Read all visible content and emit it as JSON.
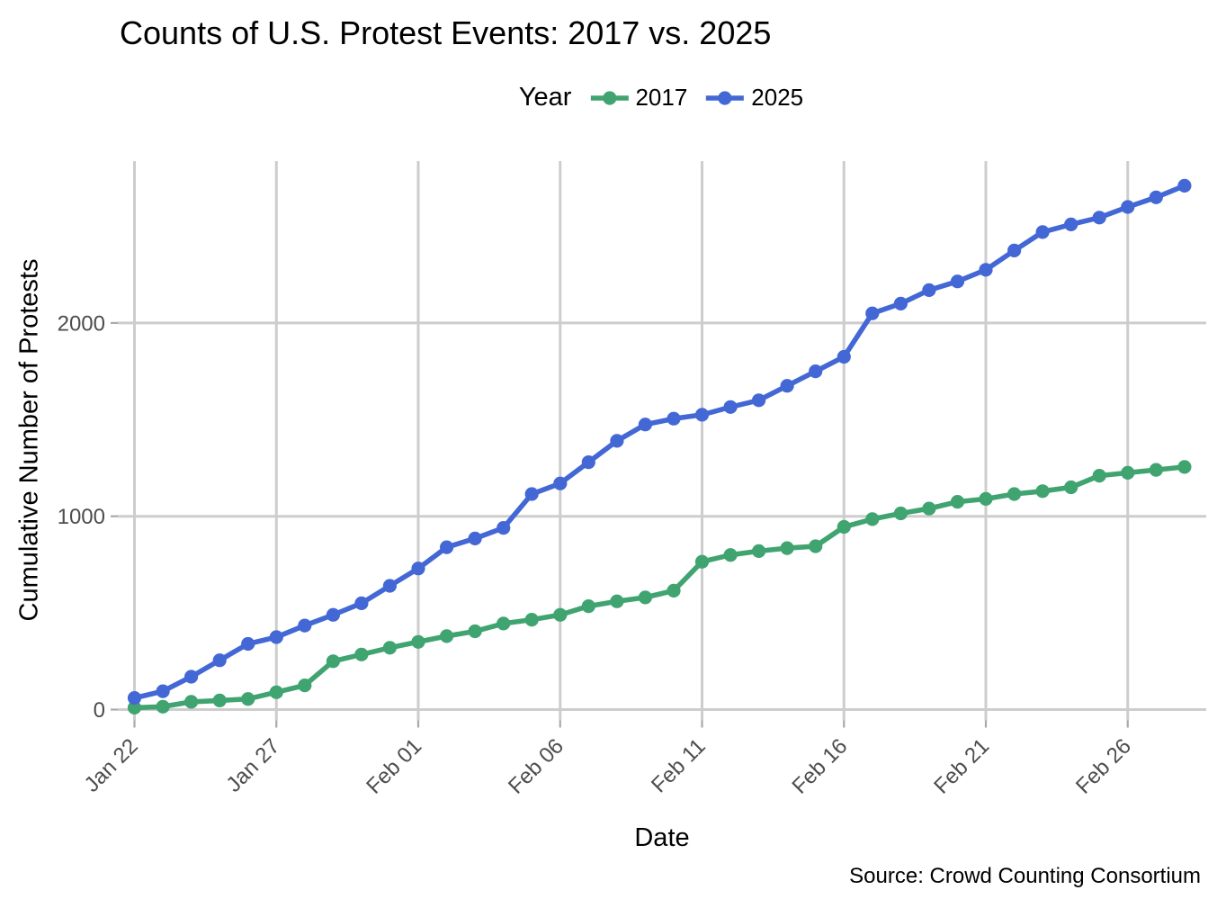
{
  "chart": {
    "title": "Counts of U.S. Protest Events: 2017 vs. 2025",
    "legend_title": "Year",
    "xlabel": "Date",
    "ylabel": "Cumulative Number of Protests",
    "source": "Source: Crowd Counting Consortium",
    "legend_items": [
      {
        "label": "2017",
        "color": "#40a471"
      },
      {
        "label": "2025",
        "color": "#4368d5"
      }
    ]
  },
  "colors": {
    "series_2017": "#40a471",
    "series_2025": "#4368d5",
    "gridline": "#cdcdcd",
    "tick_mark": "#a9a9a9",
    "tick_text": "#4d4d4d",
    "text": "#000000",
    "background": "#ffffff"
  },
  "chart_data": {
    "type": "line",
    "title": "Counts of U.S. Protest Events: 2017 vs. 2025",
    "xlabel": "Date",
    "ylabel": "Cumulative Number of Protests",
    "legend_title": "Year",
    "legend_position": "top",
    "grid": true,
    "x": [
      "Jan 22",
      "Jan 23",
      "Jan 24",
      "Jan 25",
      "Jan 26",
      "Jan 27",
      "Jan 28",
      "Jan 29",
      "Jan 30",
      "Jan 31",
      "Feb 01",
      "Feb 02",
      "Feb 03",
      "Feb 04",
      "Feb 05",
      "Feb 06",
      "Feb 07",
      "Feb 08",
      "Feb 09",
      "Feb 10",
      "Feb 11",
      "Feb 12",
      "Feb 13",
      "Feb 14",
      "Feb 15",
      "Feb 16",
      "Feb 17",
      "Feb 18",
      "Feb 19",
      "Feb 20",
      "Feb 21",
      "Feb 22",
      "Feb 23",
      "Feb 24",
      "Feb 25",
      "Feb 26",
      "Feb 27",
      "Feb 28"
    ],
    "x_tick_labels": [
      "Jan 22",
      "Jan 27",
      "Feb 01",
      "Feb 06",
      "Feb 11",
      "Feb 16",
      "Feb 21",
      "Feb 26"
    ],
    "x_tick_indices": [
      0,
      5,
      10,
      15,
      20,
      25,
      30,
      35
    ],
    "y_ticks": [
      0,
      1000,
      2000
    ],
    "ylim": [
      0,
      2900
    ],
    "series": [
      {
        "name": "2017",
        "color": "#40a471",
        "values": [
          10,
          15,
          40,
          47,
          55,
          90,
          125,
          250,
          285,
          320,
          350,
          380,
          405,
          445,
          465,
          490,
          535,
          560,
          580,
          615,
          765,
          800,
          820,
          835,
          845,
          945,
          985,
          1015,
          1040,
          1075,
          1090,
          1115,
          1130,
          1150,
          1210,
          1225,
          1240,
          1255
        ]
      },
      {
        "name": "2025",
        "color": "#4368d5",
        "values": [
          60,
          95,
          170,
          255,
          340,
          375,
          435,
          490,
          550,
          640,
          730,
          840,
          885,
          940,
          1115,
          1170,
          1280,
          1390,
          1475,
          1505,
          1525,
          1565,
          1600,
          1675,
          1750,
          1825,
          2050,
          2100,
          2170,
          2215,
          2275,
          2375,
          2470,
          2510,
          2545,
          2600,
          2650,
          2710
        ]
      }
    ],
    "source": "Source: Crowd Counting Consortium"
  }
}
